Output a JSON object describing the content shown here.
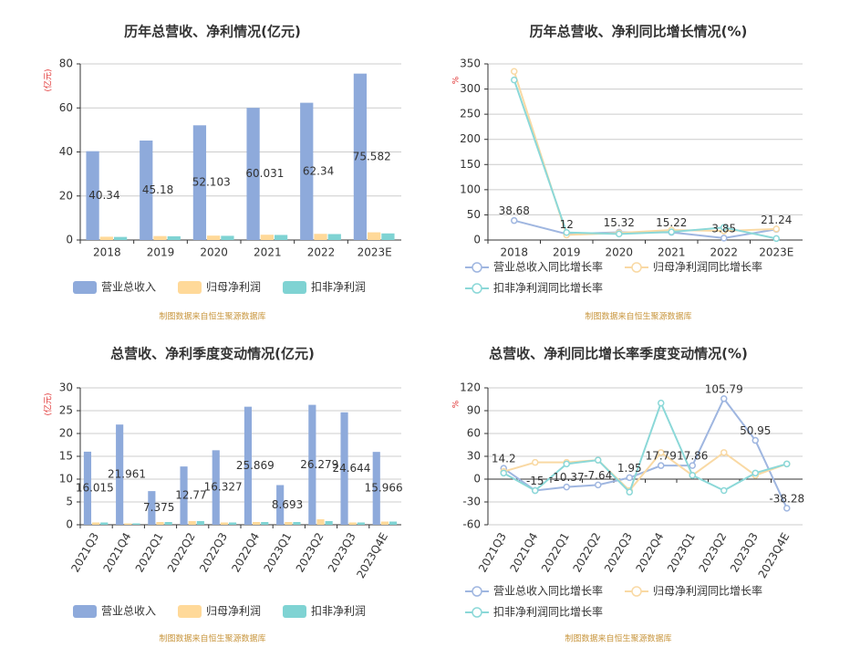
{
  "chart_data": [
    {
      "type": "bar",
      "title": "历年总营收、净利情况(亿元)",
      "y_label": "(亿元)",
      "source": "制图数据来自恒生聚源数据库",
      "categories": [
        "2018",
        "2019",
        "2020",
        "2021",
        "2022",
        "2023E"
      ],
      "series": [
        {
          "name": "营业总收入",
          "color": "#8eaadb",
          "show_labels": true,
          "values": [
            40.34,
            45.18,
            52.103,
            60.031,
            62.34,
            75.582
          ]
        },
        {
          "name": "归母净利润",
          "color": "#ffd999",
          "values": [
            1.5,
            1.8,
            2.0,
            2.4,
            2.8,
            3.5
          ]
        },
        {
          "name": "扣非净利润",
          "color": "#7fd3d3",
          "values": [
            1.4,
            1.7,
            1.9,
            2.3,
            2.7,
            3.0
          ]
        }
      ],
      "ylim": [
        0,
        80
      ],
      "yticks": [
        0,
        20,
        40,
        60,
        80
      ],
      "grid": true
    },
    {
      "type": "line",
      "title": "历年总营收、净利同比增长情况(%)",
      "y_label": "%",
      "source": "制图数据来自恒生聚源数据库",
      "categories": [
        "2018",
        "2019",
        "2020",
        "2021",
        "2022",
        "2023E"
      ],
      "series": [
        {
          "name": "营业总收入同比增长率",
          "color": "#9fb6e0",
          "show_labels": true,
          "values": [
            38.68,
            12,
            15.32,
            15.22,
            3.85,
            21.24
          ]
        },
        {
          "name": "归母净利润同比增长率",
          "color": "#f9d9a4",
          "values": [
            335,
            10,
            14,
            20,
            18,
            22
          ]
        },
        {
          "name": "扣非净利润同比增长率",
          "color": "#8bd8d8",
          "values": [
            318,
            15,
            12,
            16,
            25,
            3
          ]
        }
      ],
      "ylim": [
        0,
        350
      ],
      "yticks": [
        0,
        50,
        100,
        150,
        200,
        250,
        300,
        350
      ],
      "grid": true
    },
    {
      "type": "bar",
      "title": "总营收、净利季度变动情况(亿元)",
      "y_label": "(亿元)",
      "source": "制图数据来自恒生聚源数据库",
      "categories": [
        "2021Q3",
        "2021Q4",
        "2022Q1",
        "2022Q2",
        "2022Q3",
        "2022Q4",
        "2023Q1",
        "2023Q2",
        "2023Q3",
        "2023Q4E"
      ],
      "series": [
        {
          "name": "营业总收入",
          "color": "#8eaadb",
          "show_labels": true,
          "values": [
            16.015,
            21.961,
            7.375,
            12.77,
            16.327,
            25.869,
            8.693,
            26.279,
            24.644,
            15.966
          ]
        },
        {
          "name": "归母净利润",
          "color": "#ffd999",
          "values": [
            0.5,
            0.3,
            0.6,
            0.8,
            0.5,
            0.6,
            0.6,
            1.2,
            0.5,
            0.7
          ]
        },
        {
          "name": "扣非净利润",
          "color": "#7fd3d3",
          "values": [
            0.5,
            0.3,
            0.6,
            0.8,
            0.5,
            0.6,
            0.6,
            0.8,
            0.5,
            0.7
          ]
        }
      ],
      "ylim": [
        0,
        30
      ],
      "yticks": [
        0,
        5,
        10,
        15,
        20,
        25,
        30
      ],
      "grid": true
    },
    {
      "type": "line",
      "title": "总营收、净利同比增长率季度变动情况(%)",
      "y_label": "%",
      "source": "制图数据来自恒生聚源数据库",
      "categories": [
        "2021Q3",
        "2021Q4",
        "2022Q1",
        "2022Q2",
        "2022Q3",
        "2022Q4",
        "2023Q1",
        "2023Q2",
        "2023Q3",
        "2023Q4E"
      ],
      "series": [
        {
          "name": "营业总收入同比增长率",
          "color": "#9fb6e0",
          "show_labels": true,
          "values": [
            14.2,
            -15,
            -10.37,
            -7.64,
            1.95,
            17.79,
            17.86,
            105.79,
            50.95,
            -38.28
          ]
        },
        {
          "name": "归母净利润同比增长率",
          "color": "#f9d9a4",
          "values": [
            10,
            22,
            22,
            25,
            -15,
            35,
            5,
            35,
            5,
            20
          ]
        },
        {
          "name": "扣非净利润同比增长率",
          "color": "#8bd8d8",
          "values": [
            8,
            -15,
            20,
            25,
            -17,
            100,
            5,
            -15,
            8,
            20
          ]
        }
      ],
      "ylim": [
        -60,
        120
      ],
      "yticks": [
        -60,
        -30,
        0,
        30,
        60,
        90,
        120
      ],
      "grid": true
    }
  ]
}
